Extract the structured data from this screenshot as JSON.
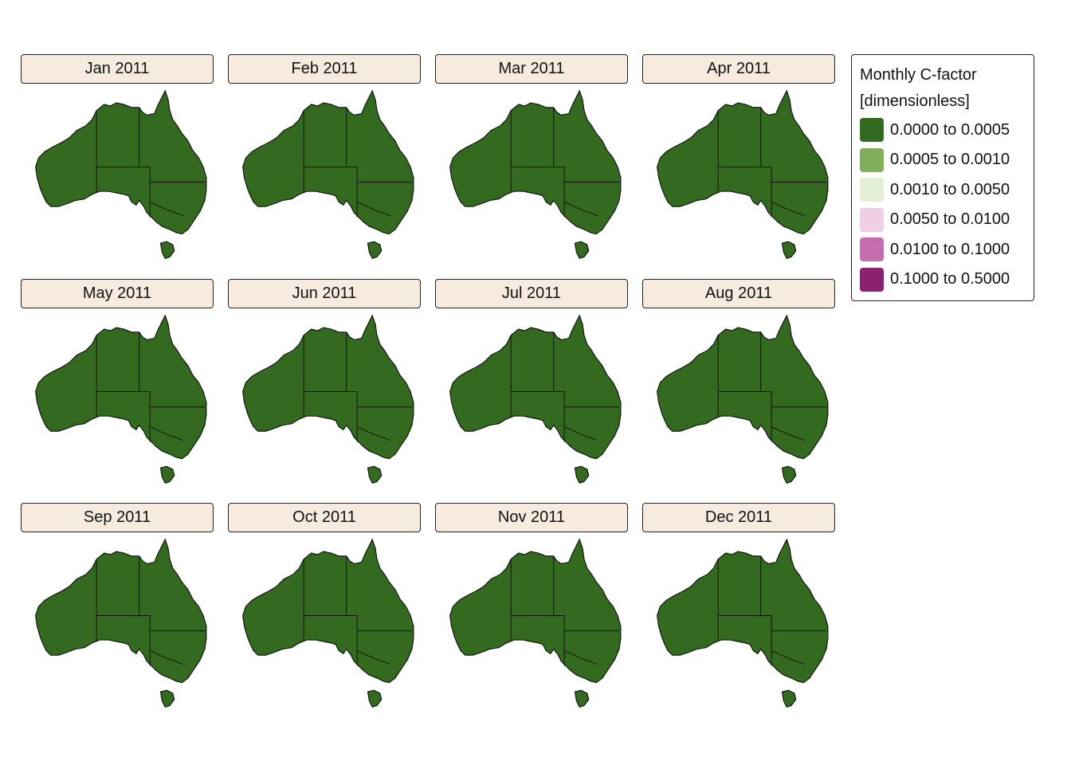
{
  "legend": {
    "title_line1": "Monthly C-factor",
    "title_line2": "[dimensionless]",
    "classes": [
      {
        "label": "0.0000 to 0.0005",
        "color": "#336a1f"
      },
      {
        "label": "0.0005 to 0.0010",
        "color": "#7faf5a"
      },
      {
        "label": "0.0010 to 0.0050",
        "color": "#e3efd6"
      },
      {
        "label": "0.0050 to 0.0100",
        "color": "#efcfe6"
      },
      {
        "label": "0.0100 to 0.1000",
        "color": "#c56db1"
      },
      {
        "label": "0.1000 to 0.5000",
        "color": "#8a226d"
      }
    ]
  },
  "panels": [
    {
      "title": "Jan 2011"
    },
    {
      "title": "Feb 2011"
    },
    {
      "title": "Mar 2011"
    },
    {
      "title": "Apr 2011"
    },
    {
      "title": "May 2011"
    },
    {
      "title": "Jun 2011"
    },
    {
      "title": "Jul 2011"
    },
    {
      "title": "Aug 2011"
    },
    {
      "title": "Sep 2011"
    },
    {
      "title": "Oct 2011"
    },
    {
      "title": "Nov 2011"
    },
    {
      "title": "Dec 2011"
    }
  ],
  "map_style": {
    "land": "#336a1f",
    "border": "#111111"
  }
}
